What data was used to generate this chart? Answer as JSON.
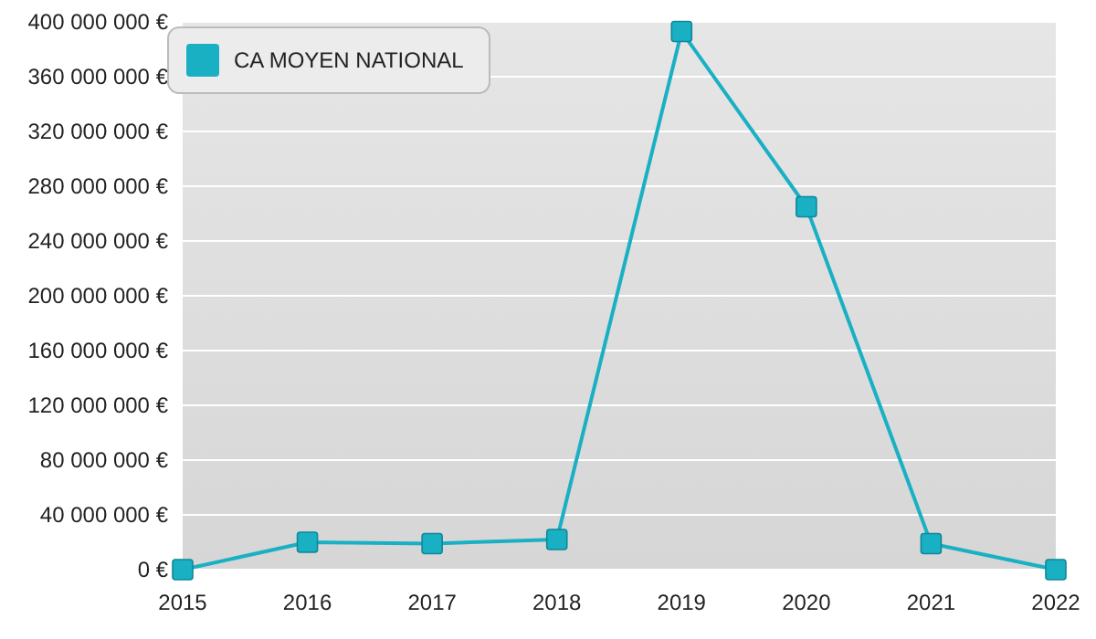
{
  "chart_data": {
    "type": "line",
    "x": [
      2015,
      2016,
      2017,
      2018,
      2019,
      2020,
      2021,
      2022
    ],
    "series": [
      {
        "name": "CA MOYEN NATIONAL",
        "color": "#1ab0c4",
        "values": [
          0,
          20000000,
          19000000,
          22000000,
          393000000,
          265000000,
          19000000,
          0
        ]
      }
    ],
    "xlim": [
      2015,
      2022
    ],
    "xticks": [
      2015,
      2016,
      2017,
      2018,
      2019,
      2020,
      2021,
      2022
    ],
    "ylim": [
      0,
      400000000
    ],
    "yticks": [
      {
        "value": 0,
        "label": "0 €"
      },
      {
        "value": 40000000,
        "label": "40 000 000 €"
      },
      {
        "value": 80000000,
        "label": "80 000 000 €"
      },
      {
        "value": 120000000,
        "label": "120 000 000 €"
      },
      {
        "value": 160000000,
        "label": "160 000 000 €"
      },
      {
        "value": 200000000,
        "label": "200 000 000 €"
      },
      {
        "value": 240000000,
        "label": "240 000 000 €"
      },
      {
        "value": 280000000,
        "label": "280 000 000 €"
      },
      {
        "value": 320000000,
        "label": "320 000 000 €"
      },
      {
        "value": 360000000,
        "label": "360 000 000 €"
      },
      {
        "value": 400000000,
        "label": "400 000 000 €"
      }
    ],
    "grid": "y",
    "legend": "top left",
    "marker": "square",
    "line_style": "solid"
  }
}
